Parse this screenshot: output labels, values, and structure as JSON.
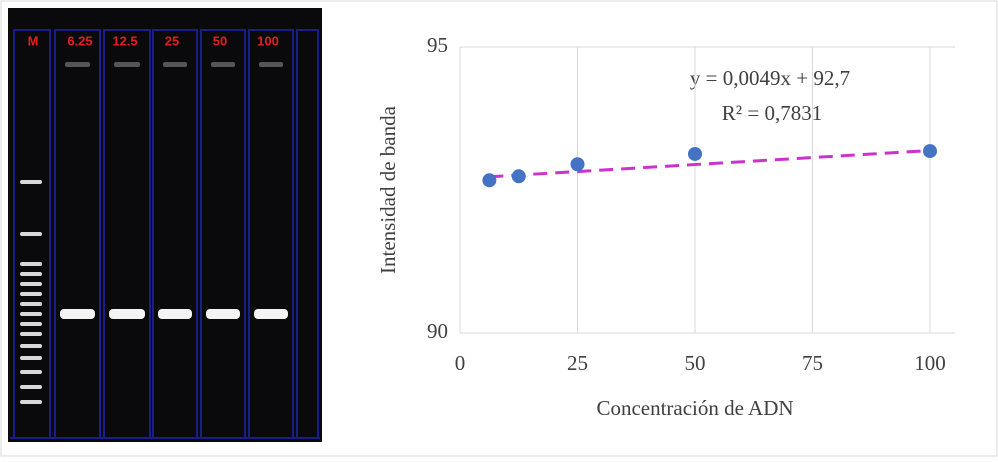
{
  "gel": {
    "lane_labels": [
      "M",
      "6.25",
      "12.5",
      "25",
      "50",
      "100"
    ]
  },
  "chart_data": {
    "type": "scatter",
    "x": [
      6.25,
      12.5,
      25,
      50,
      100
    ],
    "values": [
      92.67,
      92.74,
      92.95,
      93.13,
      93.18
    ],
    "color": "#4472c4",
    "xlabel": "Concentración de ADN",
    "ylabel": "Intensidad de banda",
    "xlim": [
      0,
      100
    ],
    "xticks": [
      0,
      25,
      50,
      75,
      100
    ],
    "ylim": [
      90,
      95
    ],
    "yticks": [
      90,
      95
    ],
    "grid": true,
    "trendline": {
      "slope": 0.0049,
      "intercept": 92.7,
      "color": "#cc33cc",
      "equation": "y = 0,0049x + 92,7",
      "r2_label": "R² = 0,7831"
    }
  }
}
